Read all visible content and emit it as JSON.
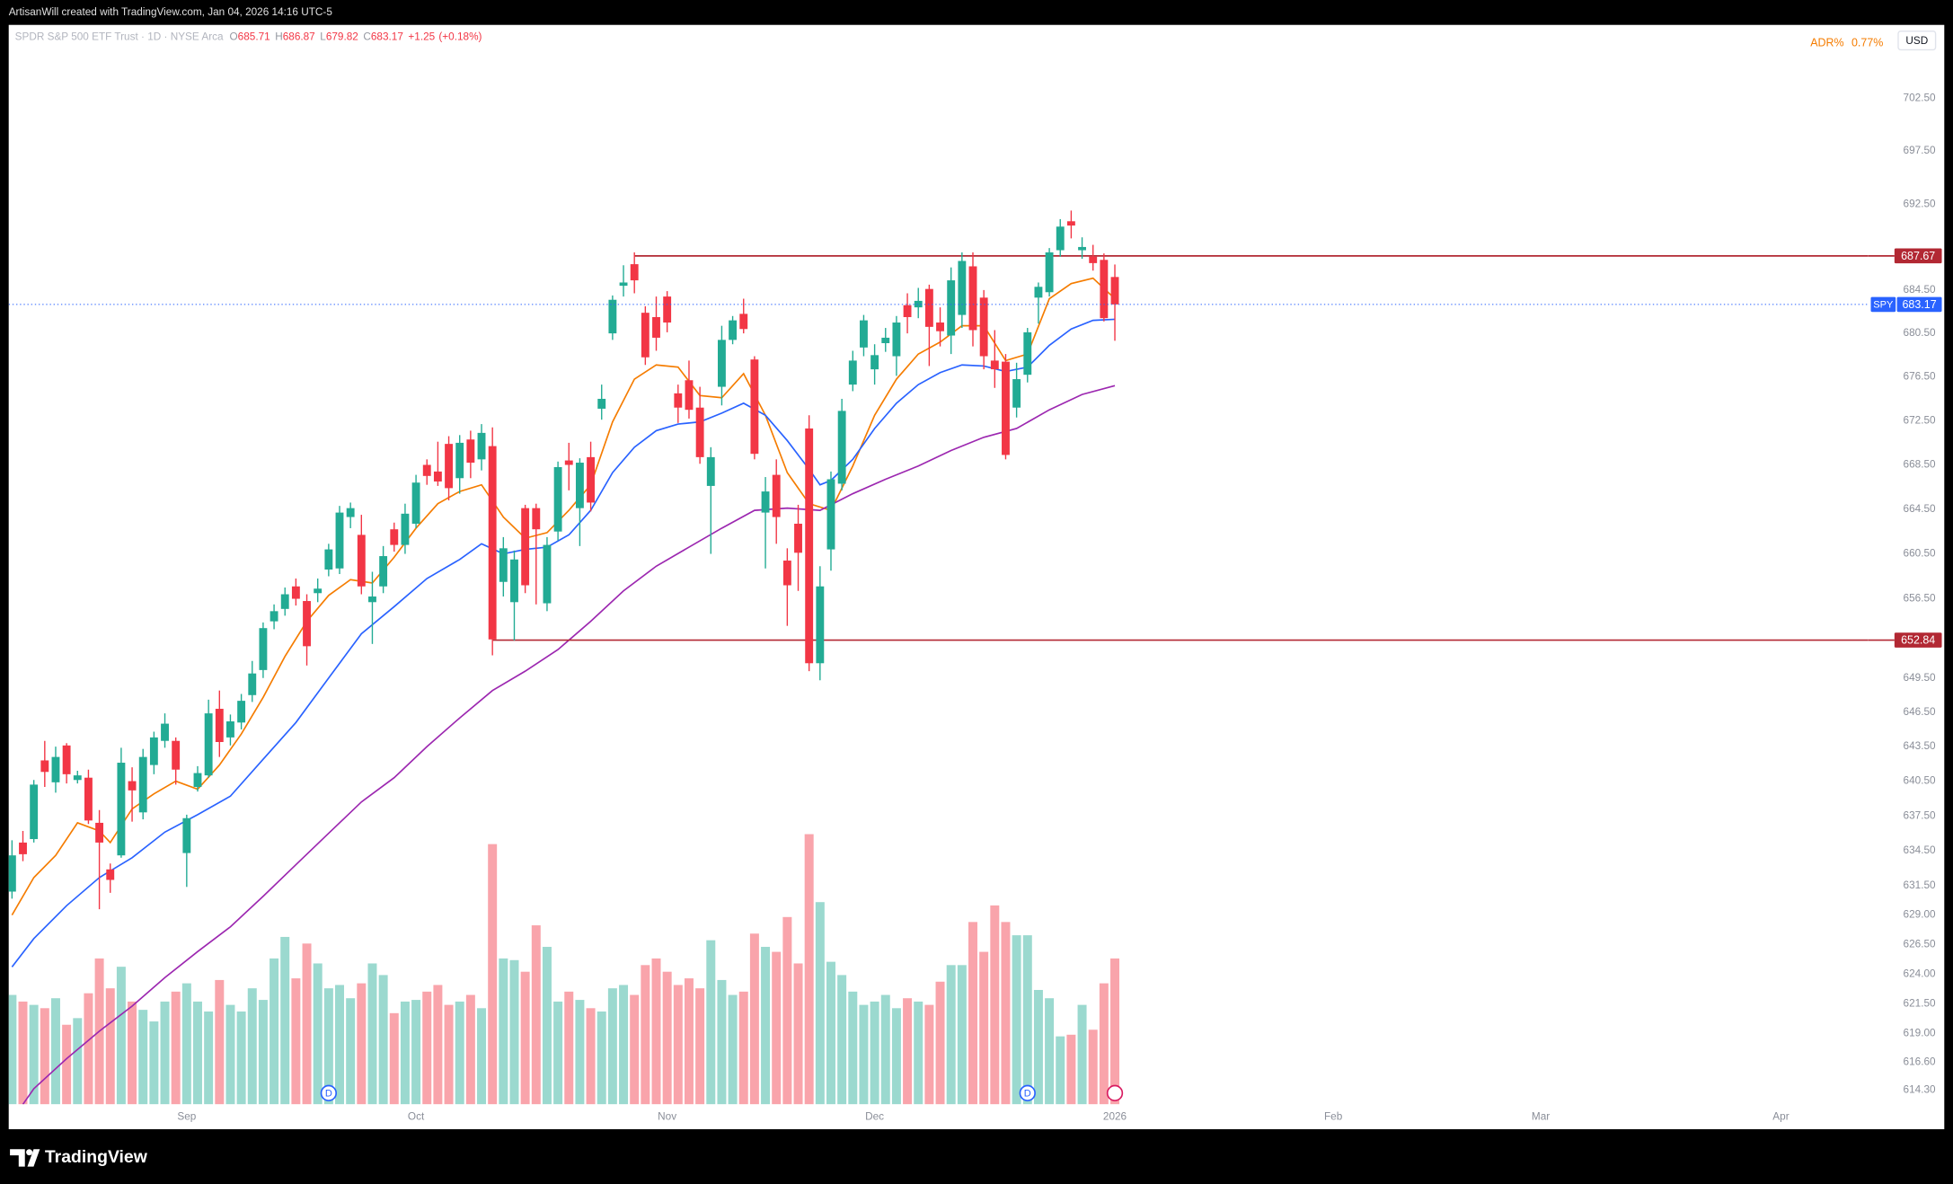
{
  "top_bar": {
    "text": "ArtisanWill created with TradingView.com, Jan 04, 2026 14:16 UTC-5"
  },
  "footer": {
    "brand": "TradingView"
  },
  "chart_data": {
    "type": "candlestick",
    "title": "SPDR S&P 500 ETF Trust · 1D · NYSE Arca",
    "symbol": "SPY",
    "currency": "USD",
    "ohlc_labels": [
      "O",
      "H",
      "L",
      "C"
    ],
    "change": "+1.25",
    "change_pct": "(+0.18%)",
    "indicator": {
      "name": "ADR%",
      "value": "0.77%",
      "color": "#f57c00"
    },
    "up_color": "#22ab94",
    "down_color": "#f23645",
    "open": [
      631.0,
      635.2,
      635.5,
      642.3,
      640.4,
      643.6,
      640.6,
      640.8,
      636.9,
      632.9,
      634.1,
      640.5,
      637.8,
      641.9,
      644.0,
      644.0,
      634.3,
      640.0,
      641.0,
      646.8,
      644.3,
      645.6,
      648.0,
      650.2,
      654.5,
      655.6,
      657.6,
      656.3,
      657.0,
      659.1,
      659.2,
      663.8,
      662.2,
      656.2,
      657.6,
      662.7,
      661.3,
      663.2,
      668.5,
      667.9,
      670.4,
      667.3,
      670.8,
      669.0,
      670.2,
      658.0,
      656.2,
      664.6,
      664.6,
      656.1,
      662.5,
      668.9,
      664.6,
      669.2,
      673.6,
      680.5,
      684.9,
      686.9,
      682.4,
      682.0,
      683.9,
      675.0,
      676.2,
      673.7,
      666.6,
      675.6,
      679.9,
      682.3,
      678.1,
      664.2,
      667.6,
      659.9,
      663.2,
      671.8,
      650.8,
      660.9,
      666.8,
      675.8,
      679.2,
      677.2,
      679.6,
      678.4,
      683.1,
      682.9,
      684.6,
      681.5,
      680.3,
      682.2,
      686.7,
      683.8,
      678.0,
      677.9,
      673.7,
      676.7,
      683.8,
      684.3,
      688.2,
      690.9,
      688.2,
      687.6,
      687.3,
      685.71
    ],
    "high": [
      635.4,
      636.2,
      640.6,
      644.0,
      643.5,
      643.8,
      641.4,
      641.5,
      638.0,
      633.4,
      643.4,
      641.7,
      643.3,
      644.8,
      646.4,
      644.3,
      637.6,
      641.8,
      647.6,
      648.4,
      646.3,
      648.1,
      651.0,
      654.4,
      656.0,
      657.5,
      658.3,
      656.9,
      658.3,
      661.4,
      664.8,
      665.1,
      664.0,
      658.9,
      661.2,
      663.3,
      665.0,
      667.6,
      669.0,
      670.6,
      671.1,
      671.2,
      671.6,
      672.2,
      671.9,
      662.0,
      660.8,
      664.9,
      665.0,
      662.0,
      668.8,
      670.5,
      669.1,
      670.6,
      675.8,
      684.0,
      686.8,
      688.0,
      683.0,
      683.9,
      684.4,
      675.8,
      678.0,
      675.6,
      670.1,
      681.2,
      682.1,
      683.7,
      678.4,
      667.4,
      669.0,
      661.0,
      664.9,
      673.0,
      659.4,
      667.9,
      674.5,
      678.9,
      682.2,
      679.5,
      681.0,
      682.1,
      684.2,
      684.7,
      685.0,
      682.9,
      686.6,
      688.0,
      688.0,
      684.5,
      680.8,
      678.6,
      677.8,
      681.0,
      685.2,
      688.4,
      691.1,
      691.9,
      689.4,
      688.7,
      687.9,
      686.87
    ],
    "low": [
      630.4,
      633.6,
      635.2,
      640.0,
      639.5,
      640.3,
      640.3,
      636.8,
      629.5,
      630.9,
      633.9,
      637.0,
      637.2,
      641.1,
      643.4,
      640.2,
      631.4,
      639.6,
      640.8,
      642.6,
      643.6,
      645.0,
      647.4,
      649.5,
      653.8,
      655.0,
      655.9,
      650.6,
      656.2,
      658.5,
      658.7,
      662.8,
      656.9,
      652.5,
      657.0,
      660.7,
      660.5,
      662.8,
      666.7,
      666.6,
      665.3,
      665.9,
      667.3,
      668.0,
      651.5,
      656.7,
      652.8,
      657.0,
      656.0,
      655.4,
      661.7,
      666.2,
      661.2,
      664.3,
      672.6,
      679.9,
      683.9,
      684.2,
      677.6,
      678.9,
      680.6,
      672.3,
      672.7,
      668.6,
      660.5,
      673.9,
      679.5,
      680.5,
      669.0,
      659.2,
      661.4,
      654.1,
      657.2,
      650.1,
      649.3,
      659.0,
      666.2,
      675.2,
      678.4,
      675.8,
      678.8,
      676.6,
      680.5,
      681.9,
      677.5,
      679.3,
      678.6,
      681.0,
      679.3,
      677.2,
      675.5,
      669.0,
      672.8,
      676.0,
      681.4,
      683.9,
      687.6,
      689.3,
      687.4,
      686.3,
      681.6,
      679.82
    ],
    "close": [
      634.1,
      634.2,
      640.2,
      641.3,
      642.6,
      641.1,
      641.0,
      637.1,
      635.2,
      632.0,
      642.1,
      639.7,
      642.6,
      644.3,
      645.5,
      641.5,
      637.3,
      641.2,
      646.4,
      643.9,
      645.7,
      647.5,
      649.9,
      653.9,
      655.4,
      656.9,
      656.5,
      652.3,
      657.4,
      660.9,
      664.2,
      664.6,
      657.6,
      656.7,
      660.3,
      661.3,
      664.1,
      666.9,
      667.5,
      667.0,
      666.4,
      670.5,
      668.7,
      671.4,
      652.9,
      661.0,
      660.0,
      657.7,
      662.7,
      661.3,
      668.3,
      668.5,
      668.7,
      665.1,
      674.5,
      683.6,
      685.2,
      685.4,
      678.3,
      680.1,
      681.5,
      673.7,
      673.5,
      669.2,
      669.2,
      679.9,
      681.7,
      680.9,
      669.5,
      666.1,
      663.8,
      657.7,
      660.6,
      650.8,
      657.6,
      667.2,
      673.4,
      678.0,
      681.7,
      678.5,
      680.1,
      681.5,
      682.0,
      683.5,
      681.1,
      680.7,
      685.4,
      687.2,
      680.8,
      678.4,
      677.2,
      669.4,
      676.3,
      680.6,
      684.8,
      688.0,
      690.4,
      690.5,
      688.5,
      687.0,
      681.9,
      683.17
    ],
    "volume": [
      66,
      62,
      60,
      58,
      64,
      48,
      52,
      67,
      88,
      70,
      83,
      62,
      57,
      50,
      62,
      68,
      73,
      62,
      56,
      75,
      60,
      56,
      70,
      63,
      88,
      101,
      76,
      97,
      85,
      70,
      72,
      64,
      73,
      85,
      78,
      55,
      62,
      63,
      68,
      72,
      60,
      62,
      66,
      58,
      157,
      88,
      87,
      80,
      108,
      95,
      62,
      68,
      63,
      58,
      56,
      70,
      72,
      66,
      84,
      88,
      80,
      72,
      76,
      70,
      99,
      75,
      66,
      68,
      103,
      95,
      92,
      113,
      85,
      163,
      122,
      86,
      78,
      68,
      60,
      62,
      66,
      58,
      64,
      62,
      60,
      74,
      84,
      84,
      110,
      92,
      120,
      110,
      102,
      102,
      69,
      64,
      41,
      42,
      60,
      45,
      73,
      88
    ],
    "moving_averages": [
      {
        "color": "#f57c00",
        "x": [
          0,
          2,
          4,
          6,
          8,
          9,
          11,
          13,
          15,
          17,
          19,
          21,
          23,
          25,
          27,
          29,
          31,
          33,
          35,
          37,
          39,
          41,
          43,
          45,
          47,
          49,
          51,
          53,
          55,
          57,
          59,
          61,
          63,
          65,
          67,
          69,
          71,
          73,
          75,
          77,
          79,
          81,
          83,
          85,
          87,
          89,
          91,
          93,
          95,
          97,
          99,
          101
        ],
        "values": [
          629.0,
          632.2,
          634.1,
          636.9,
          636.2,
          635.2,
          638.1,
          639.4,
          640.5,
          639.8,
          641.9,
          644.6,
          647.8,
          651.4,
          654.5,
          656.8,
          658.2,
          657.9,
          660.2,
          662.8,
          665.0,
          666.1,
          666.7,
          663.8,
          661.9,
          662.4,
          664.4,
          666.7,
          672.4,
          676.3,
          677.6,
          677.4,
          674.8,
          674.6,
          676.8,
          673.0,
          667.8,
          665.0,
          664.4,
          668.4,
          673.0,
          676.3,
          678.6,
          679.7,
          681.2,
          681.2,
          678.0,
          678.6,
          683.7,
          685.1,
          685.6,
          683.7
        ]
      },
      {
        "color": "#2962ff",
        "x": [
          0,
          2,
          5,
          8,
          11,
          14,
          17,
          20,
          23,
          26,
          29,
          32,
          35,
          38,
          41,
          43,
          45,
          47,
          49,
          51,
          53,
          55,
          57,
          59,
          61,
          63,
          65,
          67,
          69,
          71,
          73,
          74,
          75,
          77,
          79,
          81,
          83,
          85,
          87,
          89,
          91,
          93,
          95,
          97,
          99,
          101
        ],
        "values": [
          624.6,
          627.0,
          629.8,
          632.2,
          633.9,
          636.1,
          637.6,
          639.2,
          642.4,
          645.6,
          649.5,
          653.4,
          655.8,
          658.3,
          660.0,
          661.4,
          660.5,
          660.9,
          661.1,
          662.2,
          664.4,
          667.8,
          670.1,
          671.6,
          672.2,
          672.4,
          673.2,
          674.1,
          673.0,
          670.7,
          668.1,
          666.7,
          667.1,
          669.0,
          671.8,
          674.1,
          675.8,
          676.9,
          677.6,
          677.5,
          677.0,
          677.4,
          679.4,
          680.9,
          681.7,
          681.8
        ]
      },
      {
        "color": "#9c27b0",
        "x": [
          1,
          2,
          5,
          8,
          11,
          14,
          17,
          20,
          23,
          26,
          29,
          32,
          35,
          38,
          41,
          44,
          47,
          50,
          53,
          56,
          59,
          62,
          65,
          68,
          71,
          74,
          77,
          80,
          83,
          86,
          89,
          92,
          95,
          98,
          101
        ],
        "values": [
          613.1,
          614.4,
          616.9,
          619.2,
          621.3,
          623.7,
          625.9,
          628.0,
          630.6,
          633.3,
          636.0,
          638.7,
          640.8,
          643.5,
          646.0,
          648.4,
          650.1,
          652.0,
          654.5,
          657.2,
          659.4,
          661.1,
          662.8,
          664.4,
          664.6,
          664.4,
          665.9,
          667.2,
          668.4,
          669.8,
          671.0,
          671.8,
          673.5,
          674.9,
          675.7
        ]
      }
    ],
    "hlines": [
      {
        "value": 687.67,
        "start": 57,
        "color": "#b22833"
      },
      {
        "value": 652.84,
        "start": 44,
        "color": "#b22833"
      }
    ],
    "events": [
      {
        "x": 29,
        "label": "D"
      },
      {
        "x": 93,
        "label": "D"
      }
    ],
    "xlim": [
      -0.3,
      170
    ],
    "xticks": [
      {
        "value": 16,
        "label": "Sep"
      },
      {
        "value": 37,
        "label": "Oct"
      },
      {
        "value": 60,
        "label": "Nov"
      },
      {
        "value": 79,
        "label": "Dec"
      },
      {
        "value": 101,
        "label": "2026"
      },
      {
        "value": 121,
        "label": "Feb"
      },
      {
        "value": 140,
        "label": "Mar"
      },
      {
        "value": 162,
        "label": "Apr"
      }
    ],
    "ylim": [
      613.1,
      709.5
    ],
    "yticks": [
      {
        "value": 702.5,
        "label": "702.50"
      },
      {
        "value": 697.5,
        "label": "697.50"
      },
      {
        "value": 692.5,
        "label": "692.50"
      },
      {
        "value": 684.5,
        "label": "684.50"
      },
      {
        "value": 680.5,
        "label": "680.50"
      },
      {
        "value": 676.5,
        "label": "676.50"
      },
      {
        "value": 672.5,
        "label": "672.50"
      },
      {
        "value": 668.5,
        "label": "668.50"
      },
      {
        "value": 664.5,
        "label": "664.50"
      },
      {
        "value": 660.5,
        "label": "660.50"
      },
      {
        "value": 656.5,
        "label": "656.50"
      },
      {
        "value": 649.5,
        "label": "649.50"
      },
      {
        "value": 646.5,
        "label": "646.50"
      },
      {
        "value": 643.5,
        "label": "643.50"
      },
      {
        "value": 640.5,
        "label": "640.50"
      },
      {
        "value": 637.5,
        "label": "637.50"
      },
      {
        "value": 634.5,
        "label": "634.50"
      },
      {
        "value": 631.5,
        "label": "631.50"
      },
      {
        "value": 629,
        "label": "629.00"
      },
      {
        "value": 626.5,
        "label": "626.50"
      },
      {
        "value": 624,
        "label": "624.00"
      },
      {
        "value": 621.5,
        "label": "621.50"
      },
      {
        "value": 619,
        "label": "619.00"
      },
      {
        "value": 616.6,
        "label": "616.60"
      },
      {
        "value": 614.3,
        "label": "614.30"
      }
    ],
    "log_scale": true,
    "grid": false
  }
}
